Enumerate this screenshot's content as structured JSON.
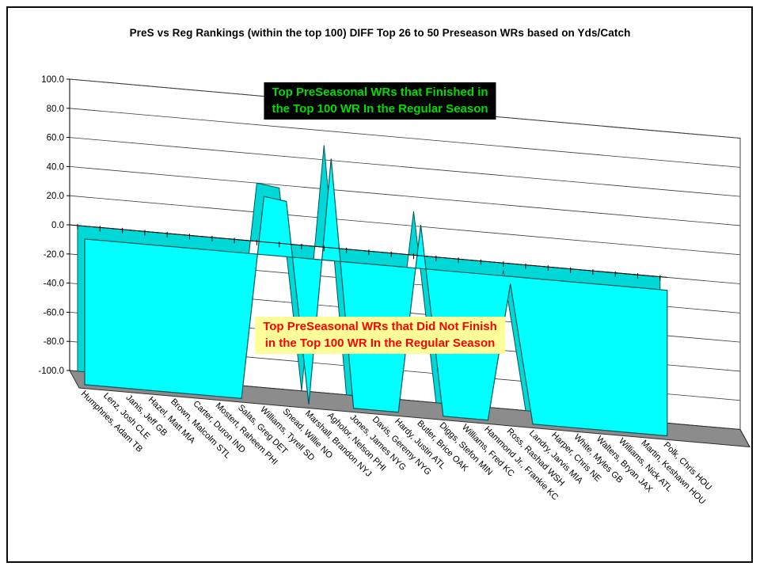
{
  "window": {
    "background": "#FFFFFF",
    "border_color": "#0A0A0A"
  },
  "chart_data": {
    "type": "area",
    "style": "3d-area",
    "title": "PreS vs Reg Rankings (within the top 100) DIFF Top 26 to 50 Preseason WRs based on Yds/Catch",
    "ylim": [
      -100,
      100
    ],
    "ytick_step": 20,
    "ytick_labels": [
      "100.0",
      "80.0",
      "60.0",
      "40.0",
      "20.0",
      "0.0",
      "-20.0",
      "-40.0",
      "-60.0",
      "-80.0",
      "-100.0"
    ],
    "grid": true,
    "legend": "none",
    "area_color": "#00FFFF",
    "area_color_dark": "#00D8D8",
    "edge_color": "#005858",
    "floor_color": "#8C8C8C",
    "categories": [
      "Humphries, Adam TB",
      "Lenz, Josh CLE",
      "Janis, Jeff GB",
      "Hazel, Matt MIA",
      "Brown, Malcolm STL",
      "Carter, Duron IND",
      "Mostert, Raheem PHI",
      "Salas, Greg DET",
      "Williams, Tyrell SD",
      "Snead, Willie NO",
      "Marshall, Brandon NYJ",
      "Agholor, Nelson PHI",
      "Jones, James NYG",
      "Davis, Geremy NYG",
      "Hardy, Justin ATL",
      "Butler, Brice OAK",
      "Diggs, Stefon MIN",
      "Williams, Fred KC",
      "Hammond Jr., Frankie KC",
      "Ross, Rashad WSH",
      "Landry, Jarvis MIA",
      "Harper, Chris NE",
      "White, Myles GB",
      "Walters, Bryan JAX",
      "Williams, Nick ATL",
      "Martin, Keshawn HOU",
      "Polk, Chris HOU"
    ],
    "values": [
      -100,
      -100,
      -100,
      -100,
      -100,
      -100,
      -100,
      -100,
      40,
      38,
      -100,
      70,
      -100,
      -100,
      -100,
      30,
      -100,
      -100,
      -100,
      -5,
      -100,
      -100,
      -100,
      -100,
      -100,
      -100,
      -100
    ],
    "annotations": [
      {
        "id": "finished",
        "text_lines": [
          "Top PreSeasonal WRs that Finished in",
          "the Top 100 WR In the Regular Season"
        ],
        "bg": "#000000",
        "color": "#00DD00"
      },
      {
        "id": "not-finished",
        "text_lines": [
          "Top PreSeasonal WRs that Did Not Finish",
          "in the Top 100 WR In the Regular Season"
        ],
        "bg": "#FFFF99",
        "color": "#FF0000"
      }
    ]
  }
}
